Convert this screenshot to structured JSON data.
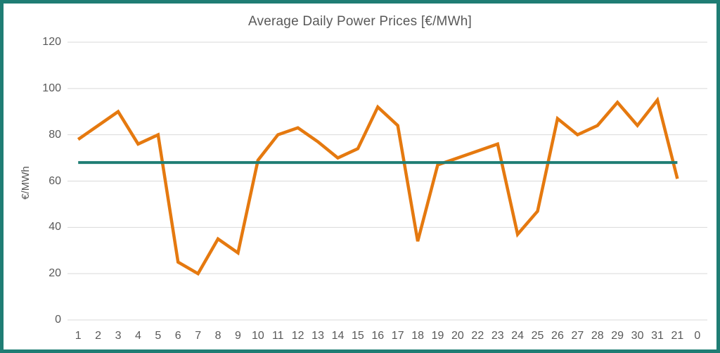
{
  "frame": {
    "border_color": "#1F7D74",
    "background": "#FFFFFF"
  },
  "chart_data": {
    "type": "line",
    "title": "Average Daily Power Prices [€/MWh]",
    "ylabel": "€/MWh",
    "xlabel": "",
    "ylim": [
      0,
      120
    ],
    "y_ticks": [
      0,
      20,
      40,
      60,
      80,
      100,
      120
    ],
    "grid": true,
    "legend": "none",
    "categories": [
      "1",
      "2",
      "3",
      "4",
      "5",
      "6",
      "7",
      "8",
      "9",
      "10",
      "11",
      "12",
      "13",
      "14",
      "15",
      "16",
      "17",
      "18",
      "19",
      "20",
      "22",
      "23",
      "24",
      "25",
      "26",
      "27",
      "28",
      "29",
      "30",
      "31",
      "21",
      "0"
    ],
    "series": [
      {
        "name": "daily_prices",
        "kind": "line",
        "color": "#E5790F",
        "values": [
          78,
          84,
          90,
          76,
          80,
          25,
          20,
          35,
          29,
          69,
          80,
          83,
          77,
          70,
          74,
          92,
          84,
          34,
          67,
          70,
          73,
          76,
          37,
          47,
          87,
          80,
          84,
          94,
          84,
          95,
          61,
          null
        ]
      },
      {
        "name": "average_line",
        "kind": "constant-line",
        "color": "#1F7D74",
        "value": 68,
        "start_index": 0,
        "end_index": 30
      }
    ],
    "colors": {
      "gridline": "#D9D9D9",
      "text": "#595959"
    }
  }
}
